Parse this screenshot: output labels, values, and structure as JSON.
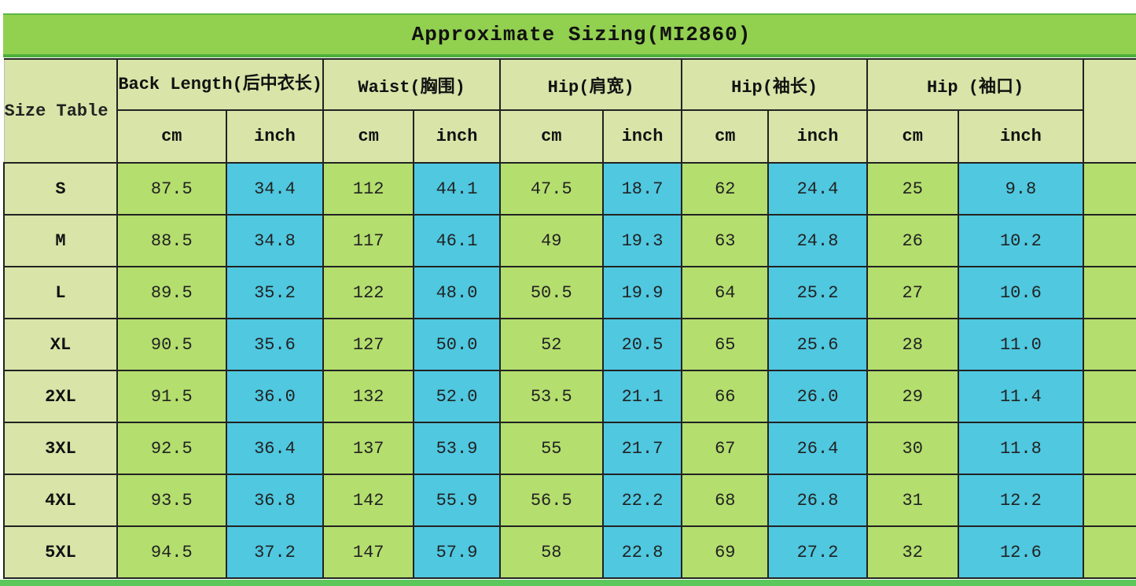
{
  "title": "Approximate Sizing(MI2860)",
  "corner_label": "Size Table",
  "groups": [
    {
      "label": "Back Length(后中衣长)"
    },
    {
      "label": "Waist(胸围)"
    },
    {
      "label": "Hip(肩宽)"
    },
    {
      "label": "Hip(袖长)"
    },
    {
      "label": "Hip (袖口)"
    }
  ],
  "units": {
    "cm": "cm",
    "inch": "inch"
  },
  "colors": {
    "title": "#92d050",
    "header": "#d8e4a8",
    "cm_cell": "#b4de6e",
    "inch_cell": "#4fc8e0"
  },
  "rows": [
    {
      "size": "S",
      "values": [
        "87.5",
        "34.4",
        "112",
        "44.1",
        "47.5",
        "18.7",
        "62",
        "24.4",
        "25",
        "9.8"
      ]
    },
    {
      "size": "M",
      "values": [
        "88.5",
        "34.8",
        "117",
        "46.1",
        "49",
        "19.3",
        "63",
        "24.8",
        "26",
        "10.2"
      ]
    },
    {
      "size": "L",
      "values": [
        "89.5",
        "35.2",
        "122",
        "48.0",
        "50.5",
        "19.9",
        "64",
        "25.2",
        "27",
        "10.6"
      ]
    },
    {
      "size": "XL",
      "values": [
        "90.5",
        "35.6",
        "127",
        "50.0",
        "52",
        "20.5",
        "65",
        "25.6",
        "28",
        "11.0"
      ]
    },
    {
      "size": "2XL",
      "values": [
        "91.5",
        "36.0",
        "132",
        "52.0",
        "53.5",
        "21.1",
        "66",
        "26.0",
        "29",
        "11.4"
      ]
    },
    {
      "size": "3XL",
      "values": [
        "92.5",
        "36.4",
        "137",
        "53.9",
        "55",
        "21.7",
        "67",
        "26.4",
        "30",
        "11.8"
      ]
    },
    {
      "size": "4XL",
      "values": [
        "93.5",
        "36.8",
        "142",
        "55.9",
        "56.5",
        "22.2",
        "68",
        "26.8",
        "31",
        "12.2"
      ]
    },
    {
      "size": "5XL",
      "values": [
        "94.5",
        "37.2",
        "147",
        "57.9",
        "58",
        "22.8",
        "69",
        "27.2",
        "32",
        "12.6"
      ]
    }
  ]
}
